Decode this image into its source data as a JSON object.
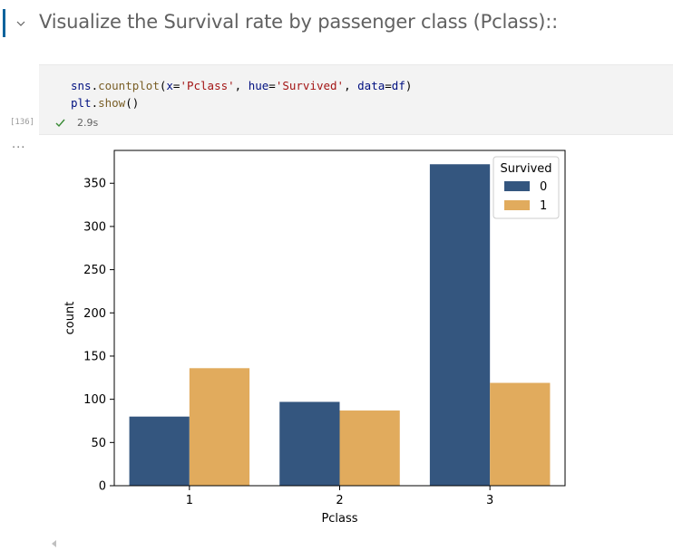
{
  "markdown": {
    "title": "Visualize the Survival rate by passenger class (Pclass)::",
    "accent_color": "#0e639c",
    "chevron_icon": "chevron-down-icon"
  },
  "code_cell": {
    "lines": [
      "sns.countplot(x='Pclass', hue='Survived', data=df)",
      "plt.show()"
    ],
    "execution_count": "[136]",
    "status_icon": "check-icon",
    "status_color": "#388a34",
    "exec_time": "2.9s"
  },
  "output": {
    "collapse_indicator": "..."
  },
  "chart_data": {
    "type": "bar",
    "categories": [
      "1",
      "2",
      "3"
    ],
    "series": [
      {
        "name": "0",
        "values": [
          80,
          97,
          372
        ],
        "color": "#34567f"
      },
      {
        "name": "1",
        "values": [
          136,
          87,
          119
        ],
        "color": "#e1ab5d"
      }
    ],
    "title": "",
    "xlabel": "Pclass",
    "ylabel": "count",
    "ylim": [
      0,
      388
    ],
    "yticks": [
      0,
      50,
      100,
      150,
      200,
      250,
      300,
      350
    ],
    "grid": false,
    "legend": {
      "title": "Survived",
      "placement": "top-right"
    }
  }
}
